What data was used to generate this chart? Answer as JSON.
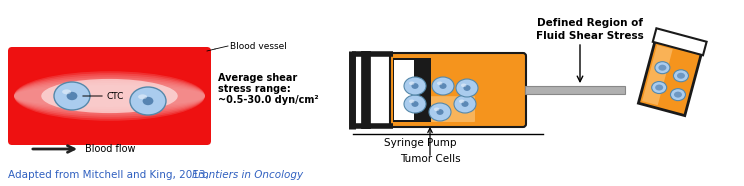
{
  "citation_normal": "Adapted from Mitchell and King, 2013, ",
  "citation_italic": "Frontiers in Oncology",
  "citation_color": "#3060C0",
  "blood_vessel_red": "#EE1111",
  "blood_vessel_light": "#FFAAAA",
  "ctc_fill": "#AACCEE",
  "ctc_outline": "#5588AA",
  "ctc_dark": "#336699",
  "blood_vessel_label": "Blood vessel",
  "blood_flow_label": "Blood flow",
  "ctc_label": "CTC",
  "shear_label1": "Average shear",
  "shear_label2": "stress range:",
  "shear_label3": "~0.5-30.0 dyn/cm²",
  "tumor_cells_label": "Tumor Cells",
  "syringe_pump_label": "Syringe Pump",
  "defined_region_label1": "Defined Region of",
  "defined_region_label2": "Fluid Shear Stress",
  "syringe_orange": "#F5941D",
  "syringe_orange_light": "#FBCB85",
  "syringe_black": "#1A1A1A",
  "syringe_gray": "#B0B0B0",
  "syringe_gray_dark": "#888888",
  "cell_fill": "#AACCEE",
  "cell_outline": "#5588AA",
  "cell_dark": "#336699",
  "vial_orange": "#F5941D",
  "vial_cap": "#CCCCCC"
}
